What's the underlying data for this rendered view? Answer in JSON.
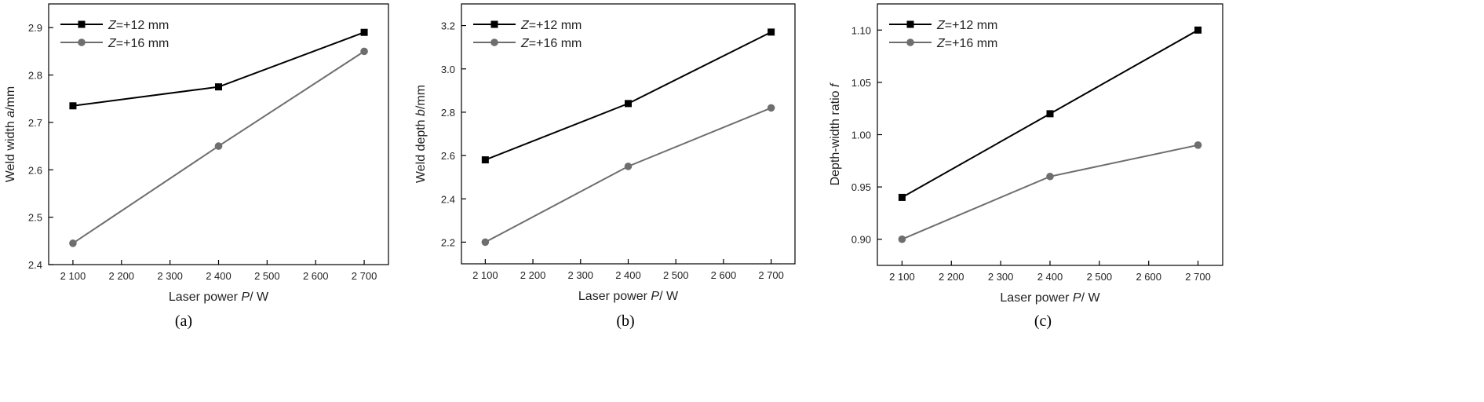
{
  "chart_data": [
    {
      "type": "line",
      "panel_label": "(a)",
      "x": [
        2100,
        2400,
        2700
      ],
      "xlabel": {
        "pre": "Laser power ",
        "var": "P",
        "post": "/ W"
      },
      "ylabel": {
        "pre": "Weld width ",
        "var": "a",
        "post": "/mm"
      },
      "xlim": [
        2050,
        2750
      ],
      "ylim": [
        2.4,
        2.95
      ],
      "xticks": [
        2100,
        2200,
        2300,
        2400,
        2500,
        2600,
        2700
      ],
      "xtick_labels": [
        "2 100",
        "2 200",
        "2 300",
        "2 400",
        "2 500",
        "2 600",
        "2 700"
      ],
      "yticks": [
        2.4,
        2.5,
        2.6,
        2.7,
        2.8,
        2.9
      ],
      "ytick_labels": [
        "2.4",
        "2.5",
        "2.6",
        "2.7",
        "2.8",
        "2.9"
      ],
      "legend_position": "top-left",
      "grid": false,
      "series": [
        {
          "name": {
            "var": "Z",
            "post": "=+12 mm"
          },
          "values": [
            2.735,
            2.775,
            2.89
          ],
          "color": "#000000",
          "marker": "square"
        },
        {
          "name": {
            "var": "Z",
            "post": "=+16 mm"
          },
          "values": [
            2.445,
            2.65,
            2.85
          ],
          "color": "#6e6e6e",
          "marker": "circle"
        }
      ]
    },
    {
      "type": "line",
      "panel_label": "(b)",
      "x": [
        2100,
        2400,
        2700
      ],
      "xlabel": {
        "pre": "Laser power ",
        "var": "P",
        "post": "/ W"
      },
      "ylabel": {
        "pre": "Weld depth ",
        "var": "b",
        "post": "/mm"
      },
      "xlim": [
        2050,
        2750
      ],
      "ylim": [
        2.1,
        3.3
      ],
      "xticks": [
        2100,
        2200,
        2300,
        2400,
        2500,
        2600,
        2700
      ],
      "xtick_labels": [
        "2 100",
        "2 200",
        "2 300",
        "2 400",
        "2 500",
        "2 600",
        "2 700"
      ],
      "yticks": [
        2.2,
        2.4,
        2.6,
        2.8,
        3.0,
        3.2
      ],
      "ytick_labels": [
        "2.2",
        "2.4",
        "2.6",
        "2.8",
        "3.0",
        "3.2"
      ],
      "legend_position": "top-left",
      "grid": false,
      "series": [
        {
          "name": {
            "var": "Z",
            "post": "=+12 mm"
          },
          "values": [
            2.58,
            2.84,
            3.17
          ],
          "color": "#000000",
          "marker": "square"
        },
        {
          "name": {
            "var": "Z",
            "post": "=+16 mm"
          },
          "values": [
            2.2,
            2.55,
            2.82
          ],
          "color": "#6e6e6e",
          "marker": "circle"
        }
      ]
    },
    {
      "type": "line",
      "panel_label": "(c)",
      "x": [
        2100,
        2400,
        2700
      ],
      "xlabel": {
        "pre": "Laser power ",
        "var": "P",
        "post": "/ W"
      },
      "ylabel": {
        "pre": "Depth-width ratio ",
        "var": "f",
        "post": ""
      },
      "xlim": [
        2050,
        2750
      ],
      "ylim": [
        0.875,
        1.125
      ],
      "xticks": [
        2100,
        2200,
        2300,
        2400,
        2500,
        2600,
        2700
      ],
      "xtick_labels": [
        "2 100",
        "2 200",
        "2 300",
        "2 400",
        "2 500",
        "2 600",
        "2 700"
      ],
      "yticks": [
        0.9,
        0.95,
        1.0,
        1.05,
        1.1
      ],
      "ytick_labels": [
        "0.90",
        "0.95",
        "1.00",
        "1.05",
        "1.10"
      ],
      "legend_position": "top-left",
      "grid": false,
      "series": [
        {
          "name": {
            "var": "Z",
            "post": "=+12 mm"
          },
          "values": [
            0.94,
            1.02,
            1.1
          ],
          "color": "#000000",
          "marker": "square"
        },
        {
          "name": {
            "var": "Z",
            "post": "=+16 mm"
          },
          "values": [
            0.9,
            0.96,
            0.99
          ],
          "color": "#6e6e6e",
          "marker": "circle"
        }
      ]
    }
  ]
}
